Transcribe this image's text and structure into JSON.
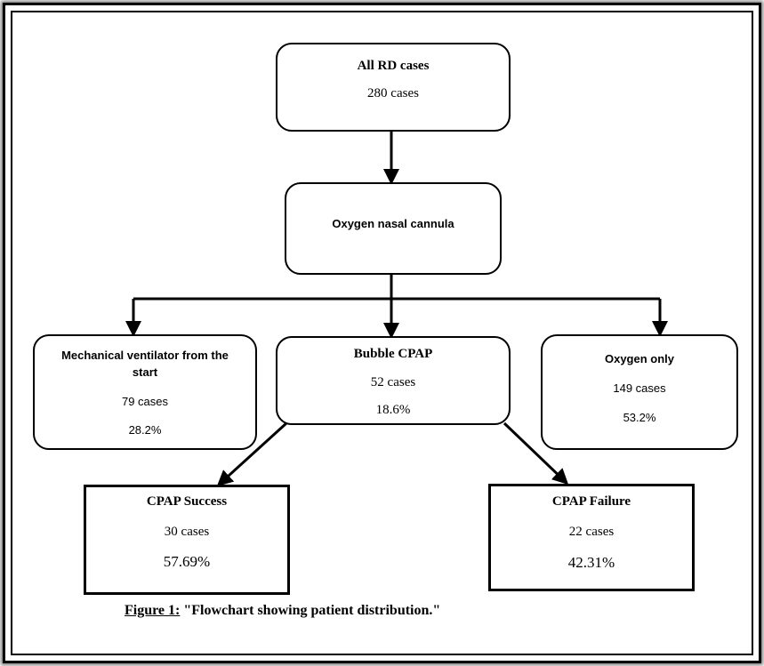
{
  "nodes": {
    "all_rd": {
      "title": "All RD cases",
      "count": "280 cases"
    },
    "oxygen_cannula": {
      "title": "Oxygen nasal cannula"
    },
    "mech_vent": {
      "title_line1": "Mechanical ventilator from the",
      "title_line2": "start",
      "count": "79 cases",
      "percent": "28.2%"
    },
    "bubble_cpap": {
      "title": "Bubble CPAP",
      "count": "52 cases",
      "percent": "18.6%"
    },
    "oxygen_only": {
      "title": "Oxygen only",
      "count": "149 cases",
      "percent": "53.2%"
    },
    "cpap_success": {
      "title": "CPAP Success",
      "count": "30 cases",
      "percent": "57.69%"
    },
    "cpap_failure": {
      "title": "CPAP Failure",
      "count": "22 cases",
      "percent": "42.31%"
    }
  },
  "caption": {
    "label": "Figure 1:",
    "text": "\"Flowchart showing patient distribution.\""
  }
}
